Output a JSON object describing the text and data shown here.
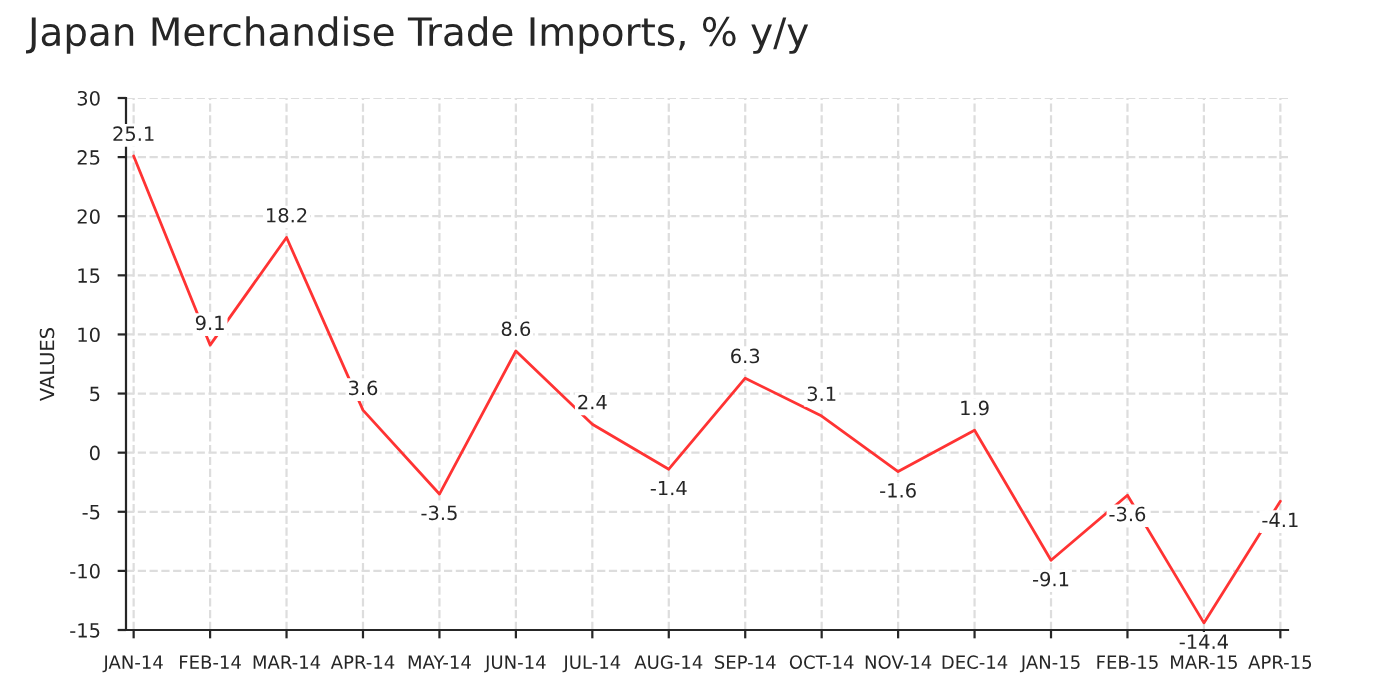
{
  "chart_data": {
    "type": "line",
    "title": "Japan Merchandise Trade Imports, % y/y",
    "ylabel": "VALUES",
    "categories": [
      "JAN-14",
      "FEB-14",
      "MAR-14",
      "APR-14",
      "MAY-14",
      "JUN-14",
      "JUL-14",
      "AUG-14",
      "SEP-14",
      "OCT-14",
      "NOV-14",
      "DEC-14",
      "JAN-15",
      "FEB-15",
      "MAR-15",
      "APR-15"
    ],
    "series": [
      {
        "color": "#ff3333",
        "values": [
          25.1,
          9.1,
          18.2,
          3.6,
          -3.5,
          8.6,
          2.4,
          -1.4,
          6.3,
          3.1,
          -1.6,
          1.9,
          -9.1,
          -3.6,
          -14.4,
          -4.1
        ]
      }
    ],
    "ylim": [
      -15,
      30
    ],
    "yticks": [
      -15,
      -10,
      -5,
      0,
      5,
      10,
      15,
      20,
      25,
      30
    ],
    "grid": true,
    "data_labels": true,
    "line_style": "solid",
    "marker": "none"
  }
}
